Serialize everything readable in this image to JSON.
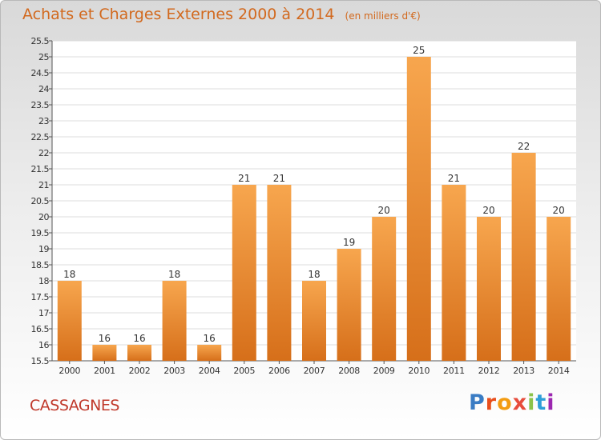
{
  "title": "Achats et Charges Externes 2000 à 2014",
  "unit": "(en milliers d'€)",
  "commune": "CASSAGNES",
  "logo": {
    "letters": [
      "P",
      "r",
      "o",
      "x",
      "i",
      "t",
      "i"
    ],
    "colors": [
      "#3a7cc4",
      "#e94e1b",
      "#f39c12",
      "#e74c3c",
      "#8bc34a",
      "#2e9fd8",
      "#9c27b0"
    ]
  },
  "colors": {
    "bar_light": "#f7a64e",
    "bar_dark": "#d66f1a",
    "text": "#d2691e",
    "commune": "#c0392b"
  },
  "chart_data": {
    "type": "bar",
    "title": "Achats et Charges Externes 2000 à 2014",
    "ylabel": "",
    "xlabel": "",
    "categories": [
      "2000",
      "2001",
      "2002",
      "2003",
      "2004",
      "2005",
      "2006",
      "2007",
      "2008",
      "2009",
      "2010",
      "2011",
      "2012",
      "2013",
      "2014"
    ],
    "values": [
      18,
      16,
      16,
      18,
      16,
      21,
      21,
      18,
      19,
      20,
      25,
      21,
      20,
      22,
      20
    ],
    "ylim": [
      15.5,
      25.5
    ],
    "yticks": [
      "15.5",
      "16",
      "16.5",
      "17",
      "17.5",
      "18",
      "18.5",
      "19",
      "19.5",
      "20",
      "20.5",
      "21",
      "21.5",
      "22",
      "22.5",
      "23",
      "23.5",
      "24",
      "24.5",
      "25",
      "25.5"
    ],
    "grid": true
  }
}
